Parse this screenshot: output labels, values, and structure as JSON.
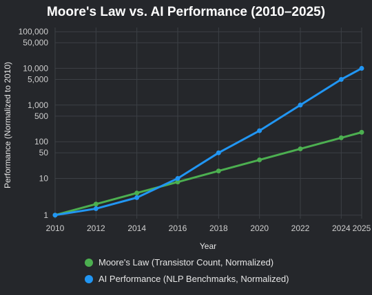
{
  "chart_data": {
    "type": "line",
    "title": "Moore's Law vs. AI Performance (2010–2025)",
    "xlabel": "Year",
    "ylabel": "Performance (Normalized to 2010)",
    "yscale": "log",
    "ylim": [
      0.8,
      130000
    ],
    "xlim": [
      2010,
      2025
    ],
    "x_ticks": [
      "2010",
      "2012",
      "2014",
      "2016",
      "2018",
      "2020",
      "2022",
      "2024",
      "2025"
    ],
    "y_ticks": [
      {
        "value": 100000,
        "label": "100,000"
      },
      {
        "value": 50000,
        "label": "50,000"
      },
      {
        "value": 10000,
        "label": "10,000"
      },
      {
        "value": 5000,
        "label": "5,000"
      },
      {
        "value": 1000,
        "label": "1,000"
      },
      {
        "value": 500,
        "label": "500"
      },
      {
        "value": 100,
        "label": "100"
      },
      {
        "value": 50,
        "label": "50"
      },
      {
        "value": 10,
        "label": "10"
      },
      {
        "value": 1,
        "label": "1"
      }
    ],
    "grid": true,
    "legend_position": "bottom",
    "series": [
      {
        "name": "Moore's Law (Transistor Count, Normalized)",
        "color": "#4caf50",
        "x": [
          2010,
          2012,
          2014,
          2016,
          2018,
          2020,
          2022,
          2024,
          2025
        ],
        "values": [
          1,
          2,
          4,
          8,
          16,
          32,
          64,
          128,
          181
        ]
      },
      {
        "name": "AI Performance (NLP Benchmarks, Normalized)",
        "color": "#2196f3",
        "x": [
          2010,
          2012,
          2014,
          2016,
          2018,
          2020,
          2022,
          2024,
          2025
        ],
        "values": [
          1,
          1.5,
          3,
          10,
          50,
          200,
          1000,
          5000,
          10000
        ]
      }
    ]
  }
}
